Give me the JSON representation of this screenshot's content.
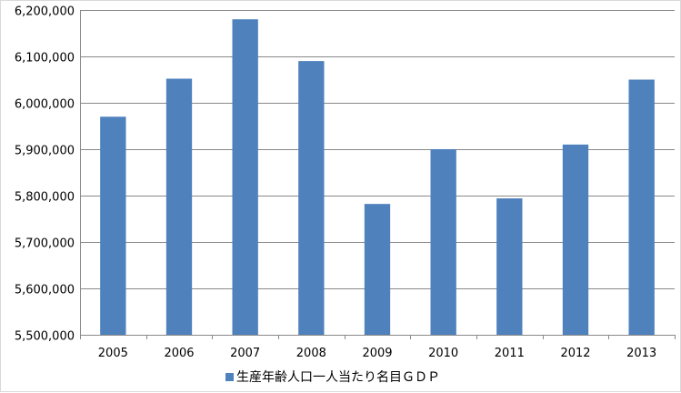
{
  "chart_data": {
    "type": "bar",
    "categories": [
      "2005",
      "2006",
      "2007",
      "2008",
      "2009",
      "2010",
      "2011",
      "2012",
      "2013"
    ],
    "series": [
      {
        "name": "生産年齢人口一人当たり名目ＧＤＰ",
        "color": "#4f81bd",
        "values": [
          5970000,
          6052000,
          6180000,
          6090000,
          5782000,
          5900000,
          5794000,
          5910000,
          6050000
        ]
      }
    ],
    "y_ticks": [
      "5,500,000",
      "5,600,000",
      "5,700,000",
      "5,800,000",
      "5,900,000",
      "6,000,000",
      "6,100,000",
      "6,200,000"
    ],
    "ylim": [
      5500000,
      6200000
    ],
    "y_step": 100000,
    "grid": true,
    "legend_position": "bottom",
    "title": "",
    "xlabel": "",
    "ylabel": ""
  }
}
